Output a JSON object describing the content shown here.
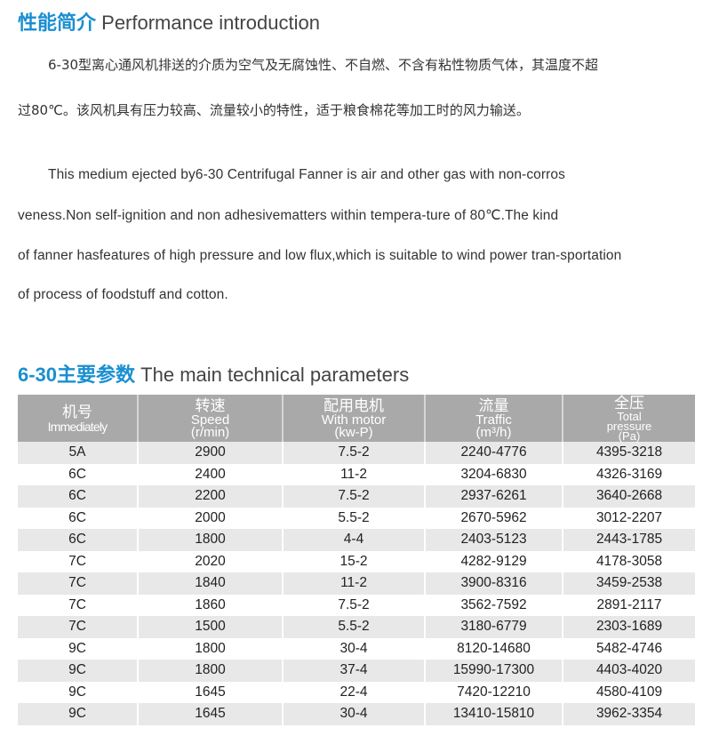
{
  "intro": {
    "title_cn": "性能简介",
    "title_en": "Performance introduction",
    "cn_lines": [
      "6-30型离心通风机排送的介质为空气及无腐蚀性、不自燃、不含有粘性物质气体，其温度不超",
      "过80℃。该风机具有压力较高、流量较小的特性，适于粮食棉花等加工时的风力输送。"
    ],
    "en_lines": [
      "This medium ejected by6-30 Centrifugal Fanner is air and other gas with non-corros",
      "veness.Non self-ignition and non adhesivematters within tempera-ture of 80℃.The kind",
      "of fanner hasfeatures of high pressure and low flux,which is suitable to wind power tran-sportation",
      "of process of foodstuff and cotton."
    ]
  },
  "params": {
    "title_cn": "6-30主要参数",
    "title_en": "The main technical parameters",
    "headers": [
      {
        "cn": "机号",
        "en": "Immediately"
      },
      {
        "cn": "转速",
        "en": "Speed",
        "unit": "(r/min)"
      },
      {
        "cn": "配用电机",
        "en": "With motor",
        "unit": "(kw-P)"
      },
      {
        "cn": "流量",
        "en": "Traffic",
        "unit": "(m³/h)"
      },
      {
        "cn": "全压",
        "en": "Total",
        "en2": "pressure",
        "unit": "(Pa)"
      }
    ],
    "rows": [
      [
        "5A",
        "2900",
        "7.5-2",
        "2240-4776",
        "4395-3218"
      ],
      [
        "6C",
        "2400",
        "11-2",
        "3204-6830",
        "4326-3169"
      ],
      [
        "6C",
        "2200",
        "7.5-2",
        "2937-6261",
        "3640-2668"
      ],
      [
        "6C",
        "2000",
        "5.5-2",
        "2670-5962",
        "3012-2207"
      ],
      [
        "6C",
        "1800",
        "4-4",
        "2403-5123",
        "2443-1785"
      ],
      [
        "7C",
        "2020",
        "15-2",
        "4282-9129",
        "4178-3058"
      ],
      [
        "7C",
        "1840",
        "11-2",
        "3900-8316",
        "3459-2538"
      ],
      [
        "7C",
        "1860",
        "7.5-2",
        "3562-7592",
        "2891-2117"
      ],
      [
        "7C",
        "1500",
        "5.5-2",
        "3180-6779",
        "2303-1689"
      ],
      [
        "9C",
        "1800",
        "30-4",
        "8120-14680",
        "5482-4746"
      ],
      [
        "9C",
        "1800",
        "37-4",
        "15990-17300",
        "4403-4020"
      ],
      [
        "9C",
        "1645",
        "22-4",
        "7420-12210",
        "4580-4109"
      ],
      [
        "9C",
        "1645",
        "30-4",
        "13410-15810",
        "3962-3354"
      ]
    ]
  }
}
